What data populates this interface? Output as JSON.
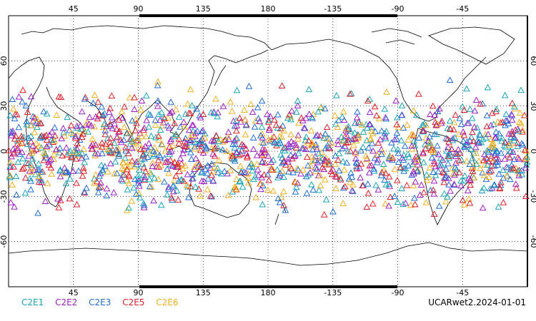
{
  "map": {
    "lon_ticks": [
      "45",
      "90",
      "135",
      "180",
      "-135",
      "-90",
      "-45"
    ],
    "lat_ticks_left": [
      "60",
      "30",
      "0",
      "-30",
      "-60"
    ],
    "lat_ticks_right": [
      "60",
      "30",
      "0",
      "-30",
      "-60"
    ],
    "lon_range": [
      0,
      360
    ],
    "lat_range": [
      -90,
      90
    ],
    "grid": "dotted",
    "marker": "triangle"
  },
  "legend": [
    {
      "label": "C2E1",
      "color": "#1aa7b5"
    },
    {
      "label": "C2E2",
      "color": "#a020c8"
    },
    {
      "label": "C2E3",
      "color": "#1f6fd6"
    },
    {
      "label": "C2E5",
      "color": "#e0202a"
    },
    {
      "label": "C2E6",
      "color": "#f0b020"
    }
  ],
  "stamp": "UCARwet2.2024-01-01"
}
